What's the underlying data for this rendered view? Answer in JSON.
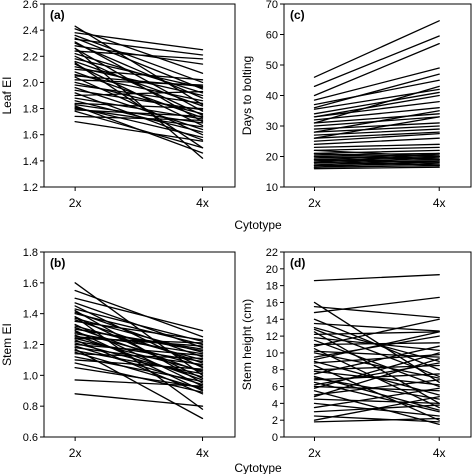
{
  "figure": {
    "xlabel_top": "Cytotype",
    "xlabel_bottom": "Cytotype"
  },
  "chart_data": [
    {
      "panel_label": "(a)",
      "type": "line",
      "categories": [
        "2x",
        "4x"
      ],
      "ylabel": "Leaf EI",
      "ylim": [
        1.2,
        2.6
      ],
      "yticks": [
        "1.2",
        "1.4",
        "1.6",
        "1.8",
        "2.0",
        "2.2",
        "2.4",
        "2.6"
      ],
      "tick_values": [
        1.2,
        1.4,
        1.6,
        1.8,
        2.0,
        2.2,
        2.4,
        2.6
      ],
      "series": [
        {
          "values": [
            2.43,
            1.83
          ]
        },
        {
          "values": [
            2.41,
            2.07
          ]
        },
        {
          "values": [
            2.38,
            2.25
          ]
        },
        {
          "values": [
            2.36,
            2.0
          ]
        },
        {
          "values": [
            2.34,
            1.95
          ]
        },
        {
          "values": [
            2.33,
            2.21
          ]
        },
        {
          "values": [
            2.31,
            1.78
          ]
        },
        {
          "values": [
            2.3,
            1.88
          ]
        },
        {
          "values": [
            2.28,
            2.14
          ]
        },
        {
          "values": [
            2.26,
            1.7
          ]
        },
        {
          "values": [
            2.24,
            2.18
          ]
        },
        {
          "values": [
            2.22,
            1.92
          ]
        },
        {
          "values": [
            2.2,
            1.75
          ]
        },
        {
          "values": [
            2.18,
            1.96
          ]
        },
        {
          "values": [
            2.16,
            1.82
          ]
        },
        {
          "values": [
            2.14,
            1.67
          ]
        },
        {
          "values": [
            2.12,
            1.9
          ]
        },
        {
          "values": [
            2.1,
            2.02
          ]
        },
        {
          "values": [
            2.08,
            1.73
          ]
        },
        {
          "values": [
            2.06,
            1.86
          ]
        },
        {
          "values": [
            2.04,
            1.6
          ]
        },
        {
          "values": [
            2.02,
            1.98
          ]
        },
        {
          "values": [
            2.0,
            1.76
          ]
        },
        {
          "values": [
            1.98,
            1.84
          ]
        },
        {
          "values": [
            1.96,
            1.64
          ]
        },
        {
          "values": [
            1.94,
            1.79
          ]
        },
        {
          "values": [
            1.92,
            1.56
          ]
        },
        {
          "values": [
            1.9,
            1.93
          ]
        },
        {
          "values": [
            1.88,
            1.72
          ]
        },
        {
          "values": [
            1.86,
            1.62
          ]
        },
        {
          "values": [
            1.84,
            1.8
          ]
        },
        {
          "values": [
            1.83,
            1.69
          ]
        },
        {
          "values": [
            1.82,
            1.46
          ]
        },
        {
          "values": [
            1.81,
            1.58
          ]
        },
        {
          "values": [
            1.8,
            1.66
          ]
        },
        {
          "values": [
            1.79,
            1.74
          ]
        },
        {
          "values": [
            1.78,
            1.5
          ]
        },
        {
          "values": [
            1.74,
            1.71
          ]
        },
        {
          "values": [
            1.7,
            1.55
          ]
        },
        {
          "values": [
            2.26,
            1.42
          ]
        },
        {
          "values": [
            2.15,
            1.5
          ]
        },
        {
          "values": [
            2.05,
            1.97
          ]
        }
      ]
    },
    {
      "panel_label": "(c)",
      "type": "line",
      "categories": [
        "2x",
        "4x"
      ],
      "ylabel": "Days to bolting",
      "ylim": [
        10,
        70
      ],
      "yticks": [
        "10",
        "20",
        "30",
        "40",
        "50",
        "60",
        "70"
      ],
      "tick_values": [
        10,
        20,
        30,
        40,
        50,
        60,
        70
      ],
      "series": [
        {
          "values": [
            46,
            64.5
          ]
        },
        {
          "values": [
            43,
            59.5
          ]
        },
        {
          "values": [
            40,
            57
          ]
        },
        {
          "values": [
            38.5,
            49
          ]
        },
        {
          "values": [
            37,
            45
          ]
        },
        {
          "values": [
            35.5,
            42
          ]
        },
        {
          "values": [
            34,
            41
          ]
        },
        {
          "values": [
            33,
            38
          ]
        },
        {
          "values": [
            32,
            36
          ]
        },
        {
          "values": [
            31,
            34
          ]
        },
        {
          "values": [
            30,
            33
          ]
        },
        {
          "values": [
            29,
            31
          ]
        },
        {
          "values": [
            28,
            30
          ]
        },
        {
          "values": [
            27,
            29
          ]
        },
        {
          "values": [
            26,
            28
          ]
        },
        {
          "values": [
            25,
            27.5
          ]
        },
        {
          "values": [
            24,
            26
          ]
        },
        {
          "values": [
            23,
            24
          ]
        },
        {
          "values": [
            22,
            23
          ]
        },
        {
          "values": [
            21,
            22
          ]
        },
        {
          "values": [
            20.5,
            21
          ]
        },
        {
          "values": [
            20,
            20.5
          ]
        },
        {
          "values": [
            19.5,
            20
          ]
        },
        {
          "values": [
            19,
            19.5
          ]
        },
        {
          "values": [
            18.5,
            19
          ]
        },
        {
          "values": [
            18,
            18.5
          ]
        },
        {
          "values": [
            17.5,
            18
          ]
        },
        {
          "values": [
            17,
            17.5
          ]
        },
        {
          "values": [
            16.5,
            17
          ]
        },
        {
          "values": [
            16,
            16.5
          ]
        },
        {
          "values": [
            17,
            20
          ]
        },
        {
          "values": [
            18,
            21
          ]
        },
        {
          "values": [
            19,
            17
          ]
        },
        {
          "values": [
            16.5,
            18.5
          ]
        },
        {
          "values": [
            20,
            17.5
          ]
        },
        {
          "values": [
            21,
            19
          ]
        },
        {
          "values": [
            22,
            20
          ]
        },
        {
          "values": [
            31,
            43
          ]
        },
        {
          "values": [
            36,
            47
          ]
        },
        {
          "values": [
            28,
            35
          ]
        },
        {
          "values": [
            33,
            40
          ]
        },
        {
          "values": [
            26,
            33
          ]
        }
      ]
    },
    {
      "panel_label": "(b)",
      "type": "line",
      "categories": [
        "2x",
        "4x"
      ],
      "ylabel": "Stem EI",
      "ylim": [
        0.6,
        1.8
      ],
      "yticks": [
        "0.6",
        "0.8",
        "1.0",
        "1.2",
        "1.4",
        "1.6",
        "1.8"
      ],
      "tick_values": [
        0.6,
        0.8,
        1.0,
        1.2,
        1.4,
        1.6,
        1.8
      ],
      "series": [
        {
          "values": [
            1.6,
            1.0
          ]
        },
        {
          "values": [
            1.55,
            1.25
          ]
        },
        {
          "values": [
            1.5,
            1.29
          ]
        },
        {
          "values": [
            1.47,
            1.18
          ]
        },
        {
          "values": [
            1.45,
            1.05
          ]
        },
        {
          "values": [
            1.43,
            1.22
          ]
        },
        {
          "values": [
            1.42,
            0.95
          ]
        },
        {
          "values": [
            1.41,
            1.12
          ]
        },
        {
          "values": [
            1.4,
            1.2
          ]
        },
        {
          "values": [
            1.38,
            0.98
          ]
        },
        {
          "values": [
            1.37,
            1.15
          ]
        },
        {
          "values": [
            1.36,
            1.08
          ]
        },
        {
          "values": [
            1.35,
            1.23
          ]
        },
        {
          "values": [
            1.33,
            0.93
          ]
        },
        {
          "values": [
            1.32,
            1.1
          ]
        },
        {
          "values": [
            1.31,
            1.02
          ]
        },
        {
          "values": [
            1.3,
            1.17
          ]
        },
        {
          "values": [
            1.29,
            0.9
          ]
        },
        {
          "values": [
            1.28,
            1.06
          ]
        },
        {
          "values": [
            1.27,
            1.14
          ]
        },
        {
          "values": [
            1.26,
            0.97
          ]
        },
        {
          "values": [
            1.25,
            1.19
          ]
        },
        {
          "values": [
            1.24,
            1.03
          ]
        },
        {
          "values": [
            1.23,
            0.88
          ]
        },
        {
          "values": [
            1.22,
            1.09
          ]
        },
        {
          "values": [
            1.21,
            0.99
          ]
        },
        {
          "values": [
            1.2,
            1.13
          ]
        },
        {
          "values": [
            1.19,
            0.94
          ]
        },
        {
          "values": [
            1.18,
            1.07
          ]
        },
        {
          "values": [
            1.17,
            0.72
          ]
        },
        {
          "values": [
            1.16,
            1.01
          ]
        },
        {
          "values": [
            1.15,
            0.91
          ]
        },
        {
          "values": [
            1.14,
            1.11
          ]
        },
        {
          "values": [
            1.12,
            0.96
          ]
        },
        {
          "values": [
            1.1,
            1.04
          ]
        },
        {
          "values": [
            1.08,
            0.89
          ]
        },
        {
          "values": [
            1.05,
            0.92
          ]
        },
        {
          "values": [
            0.97,
            0.93
          ]
        },
        {
          "values": [
            0.88,
            0.8
          ]
        },
        {
          "values": [
            1.38,
            0.78
          ]
        },
        {
          "values": [
            1.24,
            1.21
          ]
        },
        {
          "values": [
            1.3,
            1.16
          ]
        }
      ]
    },
    {
      "panel_label": "(d)",
      "type": "line",
      "categories": [
        "2x",
        "4x"
      ],
      "ylabel": "Stem height (cm)",
      "ylim": [
        0,
        22
      ],
      "yticks": [
        "0",
        "2",
        "4",
        "6",
        "8",
        "10",
        "12",
        "14",
        "16",
        "18",
        "20",
        "22"
      ],
      "tick_values": [
        0,
        2,
        4,
        6,
        8,
        10,
        12,
        14,
        16,
        18,
        20,
        22
      ],
      "series": [
        {
          "values": [
            18.6,
            19.3
          ]
        },
        {
          "values": [
            16.0,
            6.5
          ]
        },
        {
          "values": [
            15.5,
            14.2
          ]
        },
        {
          "values": [
            14.8,
            16.6
          ]
        },
        {
          "values": [
            14.0,
            8.0
          ]
        },
        {
          "values": [
            13.5,
            12.6
          ]
        },
        {
          "values": [
            13.0,
            9.0
          ]
        },
        {
          "values": [
            12.5,
            4.0
          ]
        },
        {
          "values": [
            12.2,
            12.5
          ]
        },
        {
          "values": [
            11.8,
            10.3
          ]
        },
        {
          "values": [
            11.5,
            6.0
          ]
        },
        {
          "values": [
            11.0,
            11.2
          ]
        },
        {
          "values": [
            10.5,
            3.5
          ]
        },
        {
          "values": [
            10.2,
            9.5
          ]
        },
        {
          "values": [
            10.0,
            7.0
          ]
        },
        {
          "values": [
            9.5,
            12.0
          ]
        },
        {
          "values": [
            9.0,
            5.0
          ]
        },
        {
          "values": [
            8.8,
            9.8
          ]
        },
        {
          "values": [
            8.5,
            2.0
          ]
        },
        {
          "values": [
            8.0,
            8.5
          ]
        },
        {
          "values": [
            7.8,
            6.2
          ]
        },
        {
          "values": [
            7.5,
            10.8
          ]
        },
        {
          "values": [
            7.0,
            4.5
          ]
        },
        {
          "values": [
            6.8,
            7.5
          ]
        },
        {
          "values": [
            6.5,
            3.0
          ]
        },
        {
          "values": [
            6.2,
            8.8
          ]
        },
        {
          "values": [
            6.0,
            5.5
          ]
        },
        {
          "values": [
            5.5,
            1.5
          ]
        },
        {
          "values": [
            5.0,
            6.8
          ]
        },
        {
          "values": [
            4.8,
            9.3
          ]
        },
        {
          "values": [
            4.5,
            4.0
          ]
        },
        {
          "values": [
            4.0,
            2.5
          ]
        },
        {
          "values": [
            3.5,
            5.8
          ]
        },
        {
          "values": [
            3.0,
            3.8
          ]
        },
        {
          "values": [
            2.5,
            1.8
          ]
        },
        {
          "values": [
            2.0,
            4.8
          ]
        },
        {
          "values": [
            1.8,
            2.2
          ]
        },
        {
          "values": [
            9.2,
            12.5
          ]
        },
        {
          "values": [
            10.8,
            14.0
          ]
        },
        {
          "values": [
            12.8,
            7.2
          ]
        },
        {
          "values": [
            5.8,
            10.0
          ]
        },
        {
          "values": [
            7.2,
            3.2
          ]
        }
      ]
    }
  ]
}
